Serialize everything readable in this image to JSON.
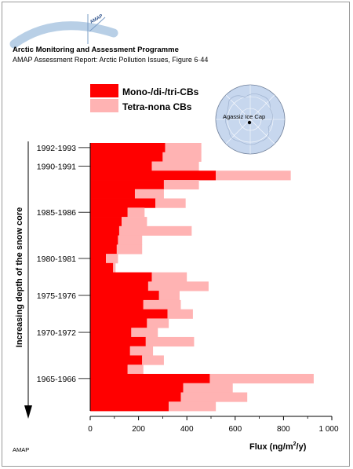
{
  "header": {
    "logo_text": "AMAP",
    "org_title": "Arctic Monitoring and Assessment Programme",
    "report_line": "AMAP Assessment Report: Arctic Pollution Issues, Figure 6·44"
  },
  "inset_map": {
    "label": "Agassiz Ice Cap"
  },
  "footer": {
    "credit": "AMAP"
  },
  "colors": {
    "mono_di_tri": "#ff0000",
    "tetra_nona": "#ffb3b3",
    "globe_fill": "#c7d7ee",
    "logo_arc": "#b8cfe6"
  },
  "chart_data": {
    "type": "bar",
    "orientation": "horizontal",
    "stacked": true,
    "xlabel": "Flux (ng/m2/y)",
    "xlabel_parts": {
      "base": "Flux (ng/m",
      "sup": "2",
      "tail": "/y)"
    },
    "ylabel": "Increasing depth of the snow core",
    "xlim": [
      0,
      1000
    ],
    "xticks": [
      0,
      200,
      400,
      600,
      800,
      1000
    ],
    "xtick_labels": [
      "0",
      "200",
      "400",
      "600",
      "800",
      "1 000"
    ],
    "legend": {
      "placement": "top-left"
    },
    "grid": false,
    "year_labels": [
      {
        "label": "1992-1993",
        "sample": 0
      },
      {
        "label": "1990-1991",
        "sample": 2
      },
      {
        "label": "1985-1986",
        "sample": 7
      },
      {
        "label": "1980-1981",
        "sample": 12
      },
      {
        "label": "1975-1976",
        "sample": 16
      },
      {
        "label": "1970-1972",
        "sample": 20
      },
      {
        "label": "1965-1966",
        "sample": 25
      }
    ],
    "series": [
      {
        "name": "Mono-/di-/tri-CBs",
        "values": [
          310,
          300,
          255,
          520,
          305,
          185,
          270,
          155,
          130,
          120,
          115,
          110,
          65,
          95,
          255,
          240,
          285,
          220,
          320,
          235,
          170,
          230,
          165,
          215,
          155,
          495,
          385,
          375,
          325
        ]
      },
      {
        "name": "Tetra-nona CBs",
        "values": [
          150,
          160,
          195,
          310,
          145,
          120,
          125,
          70,
          105,
          300,
          100,
          105,
          50,
          10,
          145,
          250,
          85,
          155,
          105,
          90,
          110,
          200,
          95,
          90,
          65,
          430,
          205,
          275,
          195
        ]
      }
    ]
  }
}
